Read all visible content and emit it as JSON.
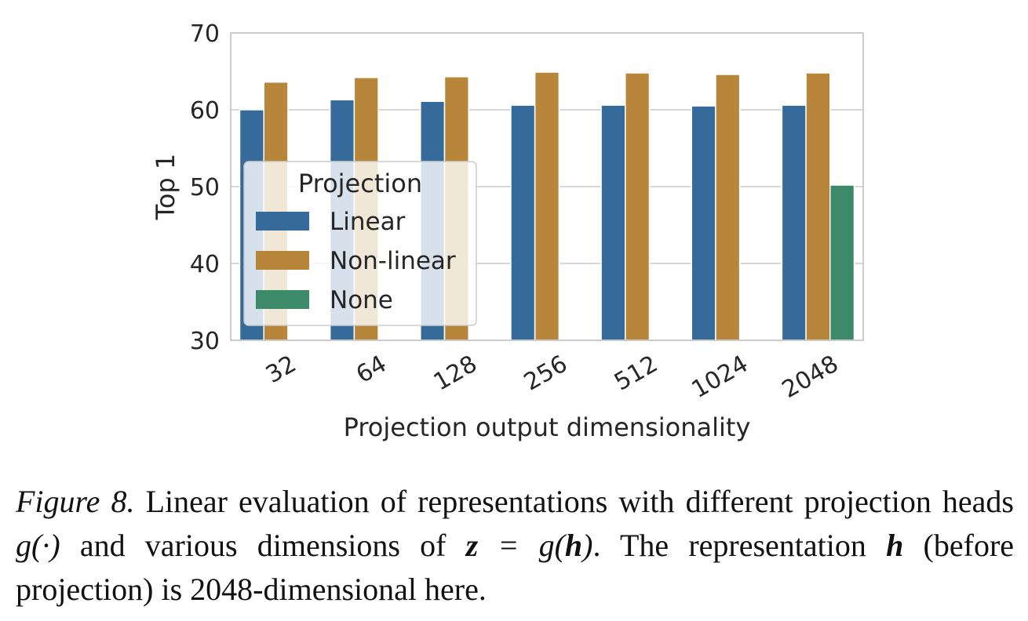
{
  "chart_data": {
    "type": "bar",
    "title": "",
    "xlabel": "Projection output dimensionality",
    "ylabel": "Top 1",
    "categories": [
      "32",
      "64",
      "128",
      "256",
      "512",
      "1024",
      "2048"
    ],
    "series": [
      {
        "name": "Linear",
        "color": "#356a9a",
        "values": [
          60.0,
          61.3,
          61.1,
          60.6,
          60.6,
          60.5,
          60.6
        ]
      },
      {
        "name": "Non-linear",
        "color": "#b8863a",
        "values": [
          63.6,
          64.2,
          64.3,
          64.9,
          64.8,
          64.6,
          64.8
        ]
      },
      {
        "name": "None",
        "color": "#3d8a6a",
        "values": [
          null,
          null,
          null,
          null,
          null,
          null,
          50.2
        ]
      }
    ],
    "ylim": [
      30,
      70
    ],
    "yticks": [
      30,
      40,
      50,
      60,
      70
    ],
    "grid": true,
    "legend": {
      "title": "Projection",
      "placement": "center-left"
    }
  },
  "caption": {
    "label": "Figure 8.",
    "text_1": " Linear evaluation of representations with different projection heads ",
    "math_1": "g(·)",
    "text_2": " and various dimensions of ",
    "math_2a": "z",
    "math_2b": " = g(",
    "math_2c": "h",
    "math_2d": ")",
    "text_3": ". The representation ",
    "math_3": "h",
    "text_4": " (before projection) is 2048-dimensional here."
  }
}
